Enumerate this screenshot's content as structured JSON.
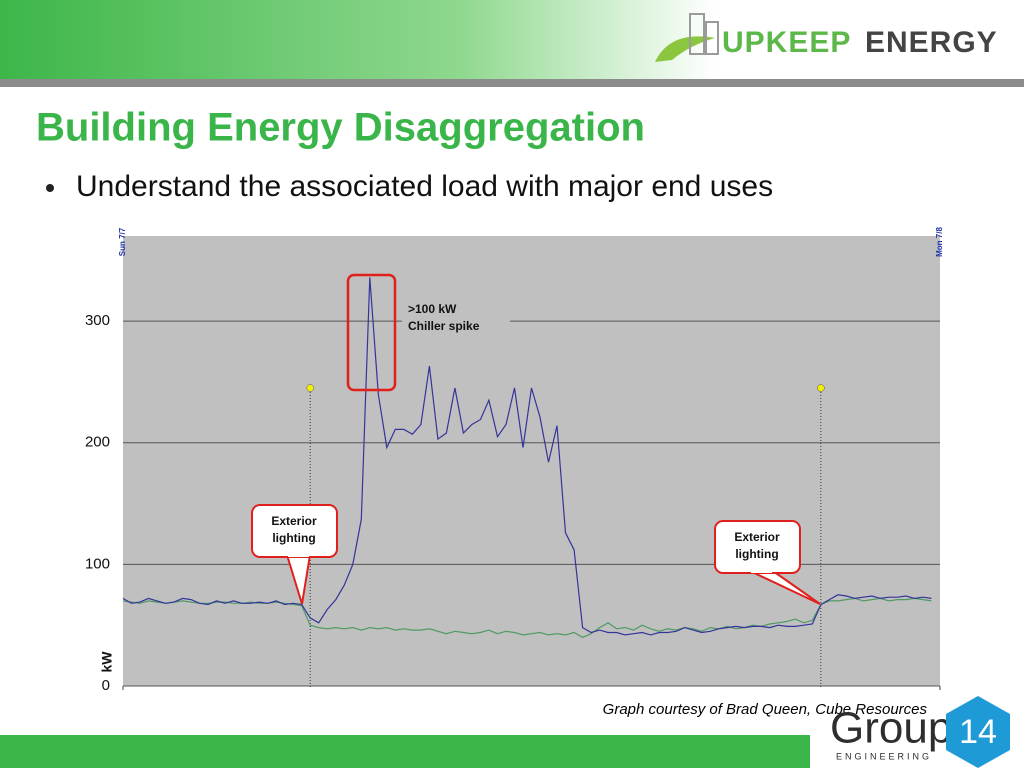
{
  "header": {
    "brand_part1": "UPKEEP",
    "brand_part2": "ENERGY"
  },
  "title": "Building Energy Disaggregation",
  "bullets": [
    "Understand the associated load with major end uses"
  ],
  "chart_data": {
    "type": "line",
    "y_label": "kW",
    "categories": [
      "Sun 7/7",
      null,
      null,
      null,
      null,
      null,
      null,
      null,
      null,
      null,
      null,
      null,
      null,
      null,
      null,
      null,
      null,
      null,
      null,
      null,
      null,
      null,
      null,
      null,
      null,
      null,
      null,
      null,
      null,
      null,
      null,
      null,
      null,
      null,
      null,
      null,
      null,
      null,
      null,
      null,
      null,
      null,
      null,
      null,
      null,
      null,
      null,
      null,
      null,
      null,
      null,
      null,
      null,
      null,
      null,
      null,
      null,
      null,
      null,
      null,
      null,
      null,
      null,
      null,
      null,
      null,
      null,
      null,
      null,
      null,
      null,
      null,
      null,
      null,
      null,
      null,
      null,
      null,
      null,
      null,
      null,
      null,
      null,
      null,
      null,
      null,
      null,
      null,
      null,
      null,
      null,
      null,
      null,
      null,
      null,
      null,
      "Mon 7/8"
    ],
    "series": [
      {
        "color": "#34349a",
        "values": [
          72,
          68,
          69,
          72,
          70,
          68,
          69,
          72,
          71,
          68,
          67,
          70,
          68,
          70,
          68,
          68,
          69,
          68,
          70,
          67,
          68,
          67,
          56,
          52,
          63,
          71,
          83,
          100,
          137,
          336,
          240,
          196,
          211,
          211,
          207,
          215,
          263,
          203,
          208,
          245,
          208,
          215,
          219,
          235,
          205,
          215,
          245,
          196,
          245,
          221,
          184,
          214,
          126,
          112,
          48,
          44,
          46,
          44,
          44,
          42,
          43,
          44,
          42,
          44,
          44,
          45,
          48,
          46,
          44,
          45,
          47,
          48,
          49,
          48,
          49,
          49,
          48,
          50,
          49,
          49,
          50,
          51,
          67,
          71,
          75,
          74,
          72,
          73,
          74,
          72,
          73,
          73,
          74,
          72,
          73,
          72,
          null
        ]
      },
      {
        "color": "#4f9a63",
        "values": [
          70,
          69,
          68,
          70,
          69,
          68,
          69,
          70,
          69,
          68,
          68,
          69,
          69,
          68,
          68,
          69,
          68,
          68,
          69,
          68,
          67,
          66,
          50,
          48,
          47,
          48,
          47,
          48,
          46,
          48,
          47,
          48,
          46,
          47,
          46,
          46,
          47,
          45,
          43,
          45,
          44,
          43,
          44,
          46,
          43,
          45,
          44,
          42,
          43,
          44,
          42,
          43,
          42,
          44,
          40,
          43,
          48,
          52,
          47,
          48,
          46,
          50,
          47,
          45,
          47,
          46,
          48,
          47,
          45,
          48,
          47,
          49,
          47,
          48,
          50,
          49,
          51,
          52,
          53,
          55,
          52,
          54,
          67,
          70,
          70,
          71,
          72,
          70,
          71,
          72,
          70,
          71,
          71,
          72,
          71,
          70,
          null
        ]
      }
    ],
    "ylim": [
      0,
      370
    ],
    "yticks": [
      0,
      100,
      200,
      300
    ],
    "grid": true,
    "annotations": [
      {
        "lines": [
          ">100 kW",
          "Chiller spike"
        ]
      },
      {
        "lines": [
          "Exterior",
          "lighting"
        ]
      },
      {
        "lines": [
          "Exterior",
          "lighting"
        ]
      }
    ]
  },
  "caption": "Graph courtesy of Brad Queen, Cube Resources",
  "footer_logo": {
    "name": "Group",
    "subtitle": "ENGINEERING",
    "number": "14"
  }
}
